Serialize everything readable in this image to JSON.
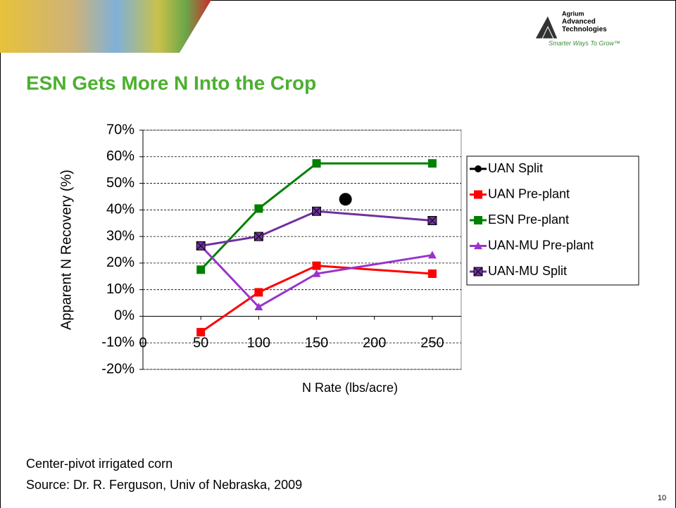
{
  "slide": {
    "logo_name": [
      "Agrium",
      "Advanced",
      "Technologies"
    ],
    "logo_tagline": "Smarter Ways To Grow™",
    "notes": [
      "Center-pivot irrigated corn",
      "Source:  Dr. R. Ferguson, Univ of Nebraska, 2009"
    ],
    "page_number": "10"
  },
  "chart_data": {
    "type": "line",
    "title": "ESN Gets More N Into the Crop",
    "x_label": "N Rate (lbs/acre)",
    "y_label": "Apparent N Recovery (%)",
    "xlim": [
      0,
      275
    ],
    "xticks": [
      0,
      50,
      100,
      150,
      200,
      250
    ],
    "ylim": [
      -20,
      70
    ],
    "yticks": [
      {
        "value": -20,
        "label": "-20%"
      },
      {
        "value": -10,
        "label": "-10%"
      },
      {
        "value": 0,
        "label": "0%"
      },
      {
        "value": 10,
        "label": "10%"
      },
      {
        "value": 20,
        "label": "20%"
      },
      {
        "value": 30,
        "label": "30%"
      },
      {
        "value": 40,
        "label": "40%"
      },
      {
        "value": 50,
        "label": "50%"
      },
      {
        "value": 60,
        "label": "60%"
      },
      {
        "value": 70,
        "label": "70%"
      }
    ],
    "grid": true,
    "legend": "right",
    "series": [
      {
        "name": "UAN Split",
        "color": "#000000",
        "marker": "circle",
        "x": [
          175
        ],
        "values": [
          44
        ]
      },
      {
        "name": "UAN Pre-plant",
        "color": "#ff0000",
        "marker": "square",
        "x": [
          50,
          100,
          150,
          250
        ],
        "values": [
          -6,
          9,
          19,
          16
        ]
      },
      {
        "name": "ESN Pre-plant",
        "color": "#008000",
        "marker": "square",
        "x": [
          50,
          100,
          150,
          250
        ],
        "values": [
          17.5,
          40.5,
          57.5,
          57.5
        ]
      },
      {
        "name": "UAN-MU Pre-plant",
        "color": "#9933cc",
        "marker": "triangle",
        "x": [
          50,
          100,
          150,
          250
        ],
        "values": [
          26.5,
          3.5,
          16,
          23
        ]
      },
      {
        "name": "UAN-MU Split",
        "color": "#7030a0",
        "marker": "xsquare",
        "x": [
          50,
          100,
          150,
          250
        ],
        "values": [
          26.5,
          30,
          39.5,
          36
        ]
      }
    ]
  }
}
